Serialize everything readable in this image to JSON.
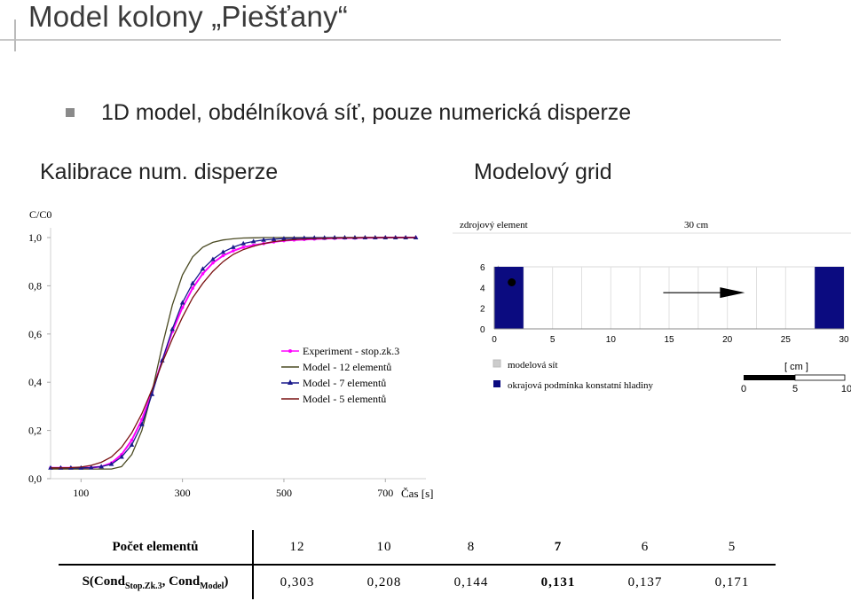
{
  "page": {
    "title": "Model kolony „Piešťany“",
    "bullet": "1D model, obdélníková síť, pouze numerická disperze",
    "left_heading": "Kalibrace num. disperze",
    "right_heading": "Modelový grid"
  },
  "chart_data": [
    {
      "type": "line",
      "ylabel": "C/C0",
      "xlabel": "Čas [s]",
      "xlim": [
        40,
        780
      ],
      "ylim": [
        0,
        1
      ],
      "x_ticks": [
        "100",
        "300",
        "500",
        "700"
      ],
      "y_ticks": [
        "1,0",
        "0,8",
        "0,6",
        "0,4",
        "0,2",
        "0,0"
      ],
      "legend_position": "inside-right",
      "series": [
        {
          "name": "Experiment - stop.zk.3",
          "color": "#ff00ff",
          "marker": "dot",
          "x": [
            40,
            60,
            80,
            100,
            120,
            140,
            160,
            180,
            200,
            220,
            240,
            260,
            280,
            300,
            320,
            340,
            360,
            380,
            400,
            420,
            440,
            460,
            480,
            500,
            520,
            540,
            560,
            580,
            600,
            620,
            640,
            660,
            680,
            700,
            720,
            740,
            760
          ],
          "y": [
            0.045,
            0.045,
            0.045,
            0.045,
            0.046,
            0.05,
            0.065,
            0.1,
            0.16,
            0.245,
            0.36,
            0.49,
            0.61,
            0.71,
            0.79,
            0.85,
            0.895,
            0.925,
            0.945,
            0.96,
            0.968,
            0.975,
            0.982,
            0.987,
            0.99,
            0.992,
            0.994,
            0.996,
            0.997,
            0.998,
            0.998,
            0.999,
            0.999,
            1.0,
            1.0,
            1.0,
            1.0
          ]
        },
        {
          "name": "Model - 12 elementů",
          "color": "#4a4a22",
          "marker": "none",
          "x": [
            40,
            60,
            80,
            100,
            120,
            140,
            160,
            180,
            200,
            220,
            240,
            260,
            280,
            300,
            320,
            340,
            360,
            380,
            400,
            420,
            440,
            460,
            480,
            500,
            520,
            540,
            560,
            580,
            600,
            620,
            640,
            660,
            680,
            700,
            720,
            740,
            760
          ],
          "y": [
            0.04,
            0.04,
            0.04,
            0.04,
            0.04,
            0.04,
            0.04,
            0.05,
            0.1,
            0.2,
            0.36,
            0.55,
            0.72,
            0.845,
            0.92,
            0.96,
            0.98,
            0.99,
            0.995,
            0.998,
            0.999,
            1.0,
            1.0,
            1.0,
            1.0,
            1.0,
            1.0,
            1.0,
            1.0,
            1.0,
            1.0,
            1.0,
            1.0,
            1.0,
            1.0,
            1.0,
            1.0
          ]
        },
        {
          "name": "Model - 7 elementů",
          "color": "#1a1a8c",
          "marker": "triangle",
          "x": [
            40,
            60,
            80,
            100,
            120,
            140,
            160,
            180,
            200,
            220,
            240,
            260,
            280,
            300,
            320,
            340,
            360,
            380,
            400,
            420,
            440,
            460,
            480,
            500,
            520,
            540,
            560,
            580,
            600,
            620,
            640,
            660,
            680,
            700,
            720,
            740,
            760
          ],
          "y": [
            0.045,
            0.045,
            0.045,
            0.045,
            0.046,
            0.05,
            0.06,
            0.09,
            0.14,
            0.225,
            0.35,
            0.49,
            0.62,
            0.73,
            0.81,
            0.87,
            0.91,
            0.94,
            0.96,
            0.975,
            0.984,
            0.99,
            0.993,
            0.996,
            0.997,
            0.998,
            0.999,
            0.999,
            1.0,
            1.0,
            1.0,
            1.0,
            1.0,
            1.0,
            1.0,
            1.0,
            1.0
          ]
        },
        {
          "name": "Model - 5 elementů",
          "color": "#7a1212",
          "marker": "none",
          "x": [
            40,
            60,
            80,
            100,
            120,
            140,
            160,
            180,
            200,
            220,
            240,
            260,
            280,
            300,
            320,
            340,
            360,
            380,
            400,
            420,
            440,
            460,
            480,
            500,
            520,
            540,
            560,
            580,
            600,
            620,
            640,
            660,
            680,
            700,
            720,
            740,
            760
          ],
          "y": [
            0.045,
            0.045,
            0.046,
            0.048,
            0.055,
            0.068,
            0.09,
            0.13,
            0.19,
            0.27,
            0.37,
            0.48,
            0.58,
            0.67,
            0.75,
            0.81,
            0.86,
            0.9,
            0.93,
            0.95,
            0.964,
            0.975,
            0.983,
            0.988,
            0.992,
            0.994,
            0.996,
            0.997,
            0.998,
            0.999,
            0.999,
            1.0,
            1.0,
            1.0,
            1.0,
            1.0,
            1.0
          ]
        }
      ]
    },
    {
      "type": "heatmap",
      "top_label": "zdrojový element",
      "top_right_label": "30 cm",
      "x_ticks": [
        "0",
        "5",
        "10",
        "15",
        "20",
        "25",
        "30"
      ],
      "y_ticks": [
        "6",
        "4",
        "2",
        "0"
      ],
      "xlim": [
        0,
        30
      ],
      "ylim": [
        0,
        6
      ],
      "cells": [
        {
          "x0": 0,
          "x1": 2.5,
          "color": "#0b0b80"
        },
        {
          "x0": 27.5,
          "x1": 30,
          "color": "#0b0b80"
        }
      ],
      "grid_columns": 12,
      "source_point": {
        "x": 1.5,
        "y": 4.5
      },
      "arrow": {
        "x0": 14.5,
        "x1": 21.5,
        "y": 3.5
      },
      "legend": [
        {
          "label": "modelová sít",
          "color": "#cccccc"
        },
        {
          "label": "okrajová podmínka konstatní hladiny",
          "color": "#0b0b80"
        }
      ],
      "scalebar": {
        "unit": "[ cm ]",
        "ticks": [
          "0",
          "5",
          "10"
        ]
      }
    }
  ],
  "table": {
    "row1_label": "Počet elementů",
    "row1_values": [
      "12",
      "10",
      "8",
      "7",
      "6",
      "5"
    ],
    "row2_label_main": "S(Cond",
    "row2_label_sub1": "Stop.Zk.3",
    "row2_label_mid": ", Cond",
    "row2_label_sub2": "Model",
    "row2_label_end": ")",
    "row2_values": [
      "0,303",
      "0,208",
      "0,144",
      "0,131",
      "0,137",
      "0,171"
    ],
    "highlight_index": 3
  }
}
